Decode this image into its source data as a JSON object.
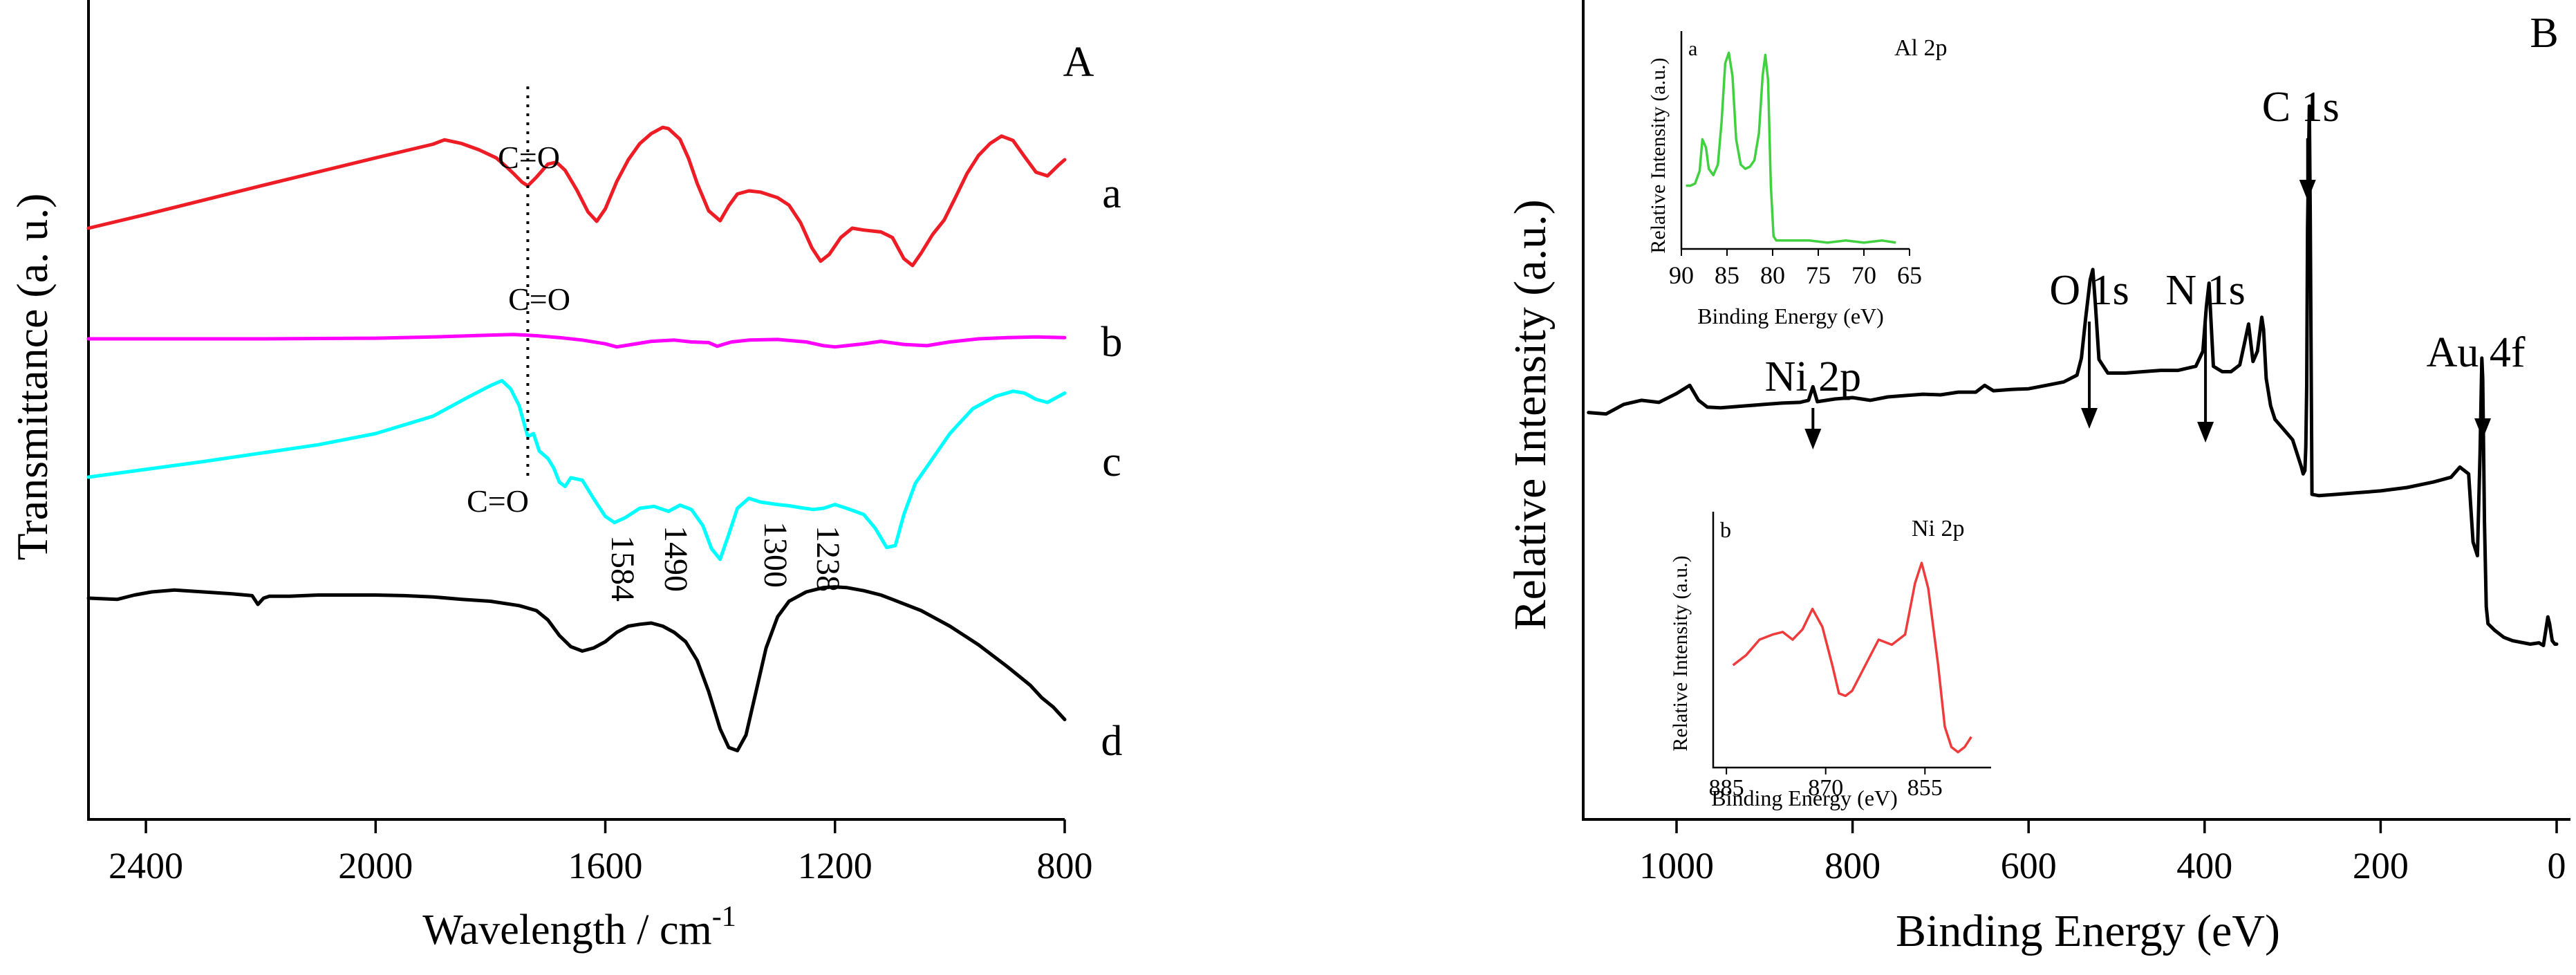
{
  "chart_data": [
    {
      "type": "line",
      "panel_label": "A",
      "xlabel": "Wavelength / cm",
      "xlabel_sup": "-1",
      "ylabel": "Transmittance (a. u.)",
      "xlim": [
        2500,
        800
      ],
      "xticks": [
        "2400",
        "2000",
        "1600",
        "1200",
        "800"
      ],
      "series": [
        {
          "name": "a",
          "color": "#ee1c25",
          "x": [
            2500,
            2400,
            2200,
            2000,
            1900,
            1880,
            1850,
            1820,
            1790,
            1775,
            1760,
            1745,
            1735,
            1720,
            1700,
            1685,
            1670,
            1650,
            1630,
            1615,
            1600,
            1580,
            1560,
            1540,
            1520,
            1500,
            1490,
            1470,
            1455,
            1440,
            1420,
            1400,
            1385,
            1370,
            1350,
            1330,
            1300,
            1280,
            1260,
            1240,
            1225,
            1210,
            1190,
            1170,
            1150,
            1120,
            1100,
            1080,
            1065,
            1050,
            1030,
            1010,
            990,
            970,
            950,
            930,
            910,
            890,
            870,
            850,
            830,
            810,
            800
          ],
          "y": [
            0,
            22,
            68,
            113,
            135,
            142,
            136,
            126,
            113,
            101,
            88,
            74,
            68,
            82,
            103,
            106,
            93,
            62,
            26,
            11,
            31,
            75,
            110,
            136,
            152,
            162,
            160,
            143,
            112,
            72,
            28,
            12,
            36,
            55,
            60,
            58,
            49,
            37,
            9,
            -32,
            -53,
            -42,
            -15,
            0,
            -3,
            -6,
            -15,
            -49,
            -60,
            -40,
            -10,
            13,
            50,
            88,
            117,
            136,
            148,
            141,
            115,
            90,
            84,
            102,
            110
          ]
        },
        {
          "name": "b",
          "color": "#ff00ff",
          "x": [
            2500,
            2200,
            2000,
            1900,
            1800,
            1760,
            1720,
            1680,
            1640,
            1600,
            1580,
            1560,
            1520,
            1480,
            1450,
            1420,
            1405,
            1395,
            1380,
            1350,
            1300,
            1250,
            1220,
            1200,
            1180,
            1150,
            1120,
            1080,
            1040,
            1000,
            950,
            900,
            850,
            800
          ],
          "y": [
            0,
            0,
            1,
            3,
            6,
            7,
            5,
            2,
            -2,
            -8,
            -13,
            -10,
            -4,
            -2,
            -5,
            -6,
            -12,
            -9,
            -5,
            -2,
            -1,
            -5,
            -11,
            -13,
            -11,
            -8,
            -4,
            -9,
            -11,
            -5,
            0,
            2,
            3,
            2
          ]
        },
        {
          "name": "c",
          "color": "#00ffff",
          "x": [
            2500,
            2300,
            2100,
            2000,
            1900,
            1840,
            1800,
            1780,
            1765,
            1750,
            1735,
            1725,
            1715,
            1700,
            1690,
            1680,
            1670,
            1660,
            1640,
            1620,
            1600,
            1584,
            1565,
            1540,
            1515,
            1490,
            1470,
            1450,
            1430,
            1415,
            1400,
            1385,
            1370,
            1350,
            1330,
            1300,
            1280,
            1260,
            1238,
            1220,
            1200,
            1180,
            1150,
            1130,
            1110,
            1095,
            1080,
            1060,
            1030,
            1000,
            960,
            920,
            890,
            870,
            850,
            830,
            810,
            800
          ],
          "y": [
            0,
            25,
            52,
            70,
            98,
            128,
            147,
            155,
            142,
            115,
            65,
            70,
            42,
            30,
            15,
            -8,
            -15,
            -1,
            -5,
            -35,
            -63,
            -73,
            -65,
            -50,
            -47,
            -55,
            -45,
            -52,
            -78,
            -115,
            -132,
            -92,
            -50,
            -34,
            -40,
            -44,
            -46,
            -49,
            -52,
            -50,
            -44,
            -50,
            -60,
            -82,
            -113,
            -110,
            -60,
            -10,
            30,
            70,
            110,
            130,
            138,
            135,
            125,
            120,
            130,
            135
          ]
        },
        {
          "name": "d",
          "color": "#000000",
          "x": [
            2500,
            2450,
            2420,
            2390,
            2350,
            2300,
            2250,
            2215,
            2205,
            2195,
            2185,
            2150,
            2100,
            2050,
            2000,
            1950,
            1900,
            1850,
            1800,
            1750,
            1720,
            1700,
            1680,
            1660,
            1640,
            1620,
            1600,
            1580,
            1560,
            1540,
            1520,
            1500,
            1480,
            1460,
            1440,
            1420,
            1400,
            1385,
            1370,
            1355,
            1340,
            1320,
            1300,
            1280,
            1250,
            1220,
            1200,
            1180,
            1150,
            1120,
            1100,
            1050,
            1000,
            950,
            900,
            880,
            860,
            840,
            820,
            800
          ],
          "y": [
            0,
            -2,
            5,
            10,
            13,
            10,
            7,
            4,
            -10,
            0,
            3,
            3,
            5,
            5,
            5,
            4,
            2,
            -2,
            -5,
            -12,
            -20,
            -35,
            -60,
            -78,
            -85,
            -80,
            -70,
            -55,
            -45,
            -42,
            -40,
            -45,
            -55,
            -70,
            -100,
            -150,
            -210,
            -240,
            -245,
            -220,
            -160,
            -80,
            -30,
            -5,
            10,
            17,
            18,
            17,
            12,
            5,
            -2,
            -20,
            -45,
            -75,
            -110,
            -125,
            -140,
            -160,
            -175,
            -195
          ]
        }
      ],
      "series_labels": [
        "a",
        "b",
        "c",
        "d"
      ],
      "annotations": [
        {
          "text": "C=O",
          "x": 1735
        },
        {
          "text": "C=O",
          "x": 1735
        },
        {
          "text": "C=O",
          "x": 1735
        },
        {
          "text": "1584",
          "x": 1584
        },
        {
          "text": "1490",
          "x": 1490
        },
        {
          "text": "1300",
          "x": 1300
        },
        {
          "text": "1238",
          "x": 1238
        }
      ],
      "reference_line_x": 1735
    },
    {
      "type": "line",
      "panel_label": "B",
      "xlabel": "Binding Energy (eV)",
      "ylabel": "Relative Intensity (a.u.)",
      "xlim": [
        1100,
        0
      ],
      "xticks": [
        "1000",
        "800",
        "600",
        "400",
        "200",
        "0"
      ],
      "series": [
        {
          "name": "",
          "color": "#000000",
          "x": [
            1100,
            1080,
            1060,
            1040,
            1020,
            1000,
            985,
            975,
            965,
            950,
            920,
            900,
            880,
            860,
            850,
            845,
            840,
            820,
            800,
            780,
            760,
            740,
            720,
            700,
            680,
            660,
            650,
            640,
            620,
            600,
            580,
            560,
            545,
            540,
            535,
            530,
            527,
            524,
            520,
            510,
            490,
            470,
            450,
            430,
            410,
            402,
            398,
            395,
            390,
            380,
            370,
            360,
            355,
            350,
            345,
            340,
            335,
            333,
            330,
            325,
            320,
            310,
            300,
            295,
            290,
            288,
            286,
            285,
            284,
            283,
            281,
            280,
            278,
            270,
            250,
            230,
            200,
            170,
            140,
            120,
            110,
            100,
            95,
            90,
            87,
            85,
            84,
            82,
            80,
            78,
            70,
            60,
            50,
            30,
            20,
            15,
            10,
            8,
            5,
            2,
            0
          ],
          "y": [
            110,
            108,
            122,
            128,
            125,
            138,
            150,
            128,
            118,
            117,
            120,
            122,
            124,
            125,
            128,
            148,
            126,
            130,
            132,
            128,
            133,
            135,
            137,
            136,
            140,
            140,
            150,
            142,
            144,
            145,
            150,
            155,
            165,
            190,
            250,
            305,
            320,
            268,
            188,
            168,
            168,
            170,
            172,
            172,
            178,
            200,
            265,
            300,
            178,
            170,
            170,
            180,
            210,
            240,
            185,
            200,
            250,
            232,
            160,
            120,
            100,
            85,
            70,
            50,
            30,
            20,
            25,
            60,
            150,
            380,
            560,
            400,
            -10,
            -12,
            -10,
            -8,
            -5,
            0,
            8,
            15,
            30,
            20,
            -80,
            -100,
            50,
            190,
            160,
            -50,
            -175,
            -200,
            -210,
            -220,
            -225,
            -230,
            -228,
            -232,
            -190,
            -200,
            -225,
            -230,
            -230
          ]
        }
      ],
      "peak_labels": [
        {
          "text": "Ni 2p",
          "x": 845
        },
        {
          "text": "O 1s",
          "x": 531
        },
        {
          "text": "N 1s",
          "x": 399
        },
        {
          "text": "C 1s",
          "x": 283
        },
        {
          "text": "Au 4f",
          "x": 84
        }
      ],
      "insets": [
        {
          "label": "a",
          "title": "Al 2p",
          "color": "#40d040",
          "xlabel": "Binding Energy (eV)",
          "ylabel": "Relative Intensity (a.u.)",
          "xlim": [
            90,
            65
          ],
          "xticks": [
            "90",
            "85",
            "80",
            "75",
            "70",
            "65"
          ],
          "x": [
            89.5,
            89,
            88.5,
            88,
            87.7,
            87.3,
            87,
            86.5,
            86,
            85.6,
            85.2,
            84.8,
            84.4,
            84,
            83.5,
            83,
            82.5,
            82,
            81.5,
            81.1,
            80.8,
            80.5,
            80.2,
            79.9,
            79.6,
            79.3,
            79,
            78,
            76,
            74,
            72,
            70,
            68,
            66.5
          ],
          "y": [
            0.3,
            0.3,
            0.31,
            0.37,
            0.52,
            0.48,
            0.38,
            0.35,
            0.4,
            0.6,
            0.88,
            0.93,
            0.82,
            0.52,
            0.4,
            0.38,
            0.39,
            0.42,
            0.55,
            0.82,
            0.92,
            0.8,
            0.3,
            0.06,
            0.04,
            0.04,
            0.04,
            0.04,
            0.04,
            0.03,
            0.04,
            0.03,
            0.04,
            0.03
          ]
        },
        {
          "label": "b",
          "title": "Ni 2p",
          "color": "#ee3b3b",
          "xlabel": "Binding Energy (eV)",
          "ylabel": "Relative Intensity (a.u.)",
          "xlim": [
            887,
            845
          ],
          "xticks": [
            "885",
            "870",
            "855"
          ],
          "x": [
            884,
            882,
            880,
            878,
            876.5,
            875,
            873.5,
            872,
            870.5,
            869,
            868,
            867,
            866,
            864,
            862,
            860,
            858,
            856.5,
            855.5,
            854.5,
            853,
            852,
            851,
            850,
            849,
            848
          ],
          "y": [
            0.4,
            0.44,
            0.5,
            0.52,
            0.53,
            0.5,
            0.54,
            0.62,
            0.55,
            0.4,
            0.29,
            0.28,
            0.3,
            0.4,
            0.5,
            0.48,
            0.52,
            0.72,
            0.8,
            0.7,
            0.4,
            0.16,
            0.08,
            0.06,
            0.08,
            0.12
          ]
        }
      ]
    }
  ]
}
